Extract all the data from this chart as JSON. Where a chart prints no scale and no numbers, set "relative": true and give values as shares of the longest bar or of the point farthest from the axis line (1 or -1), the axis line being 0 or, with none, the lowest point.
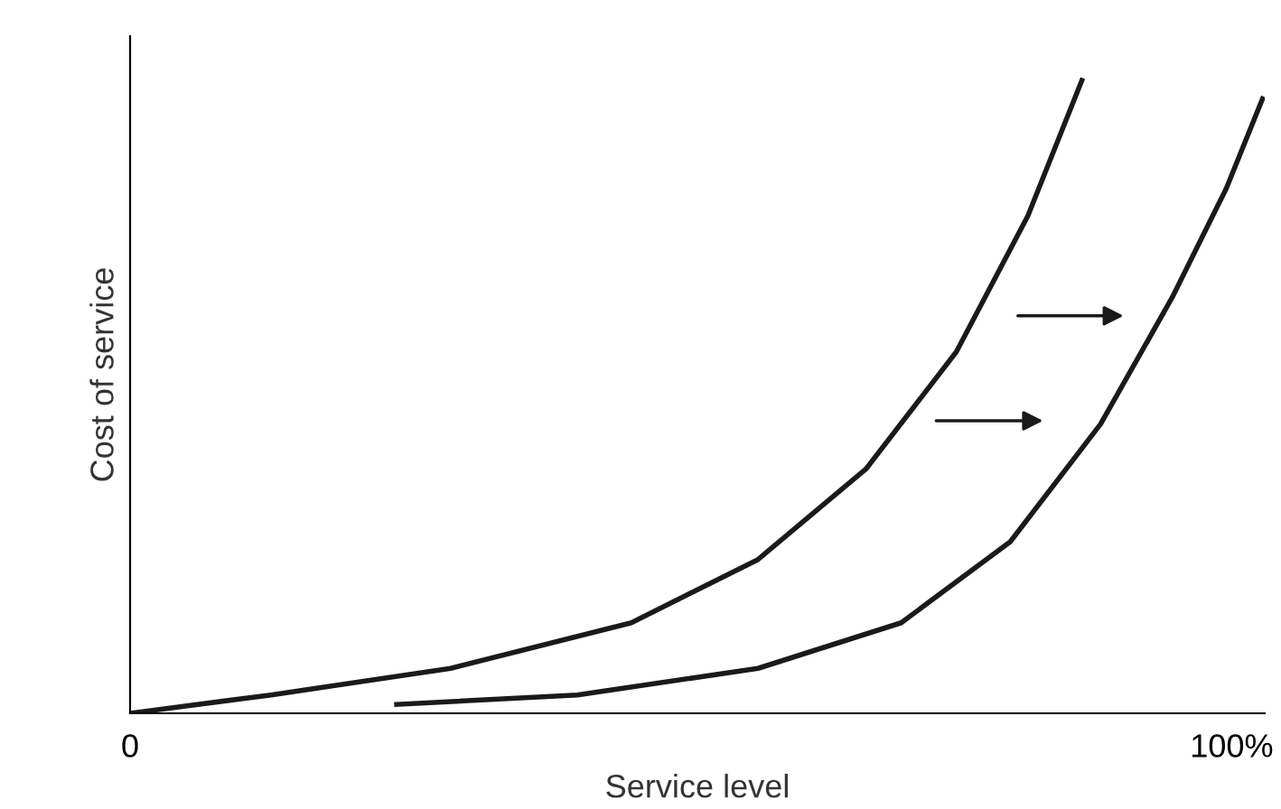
{
  "chart_data": {
    "type": "line",
    "relative": true,
    "xlabel": "Service level",
    "ylabel": "Cost of service",
    "xlim": [
      0,
      103
    ],
    "xticks": [
      0,
      {
        "value": 100,
        "label": "100%"
      }
    ],
    "tick_labels": "x",
    "grid": false,
    "legend": false,
    "marker": "none",
    "line_style": "solid",
    "series": [
      {
        "color": "#1a1a1a",
        "x": [
          0,
          12.8,
          29.1,
          45.5,
          57.0,
          66.8,
          75.0,
          81.5,
          86.4
        ],
        "values": [
          0,
          0.029,
          0.071,
          0.143,
          0.243,
          0.386,
          0.571,
          0.786,
          1.0
        ]
      },
      {
        "color": "#1a1a1a",
        "x": [
          24.2,
          40.6,
          57.0,
          70.0,
          79.9,
          88.1,
          94.6,
          99.5,
          102.8
        ],
        "values": [
          0.014,
          0.029,
          0.071,
          0.143,
          0.271,
          0.457,
          0.657,
          0.829,
          0.971
        ]
      }
    ]
  }
}
